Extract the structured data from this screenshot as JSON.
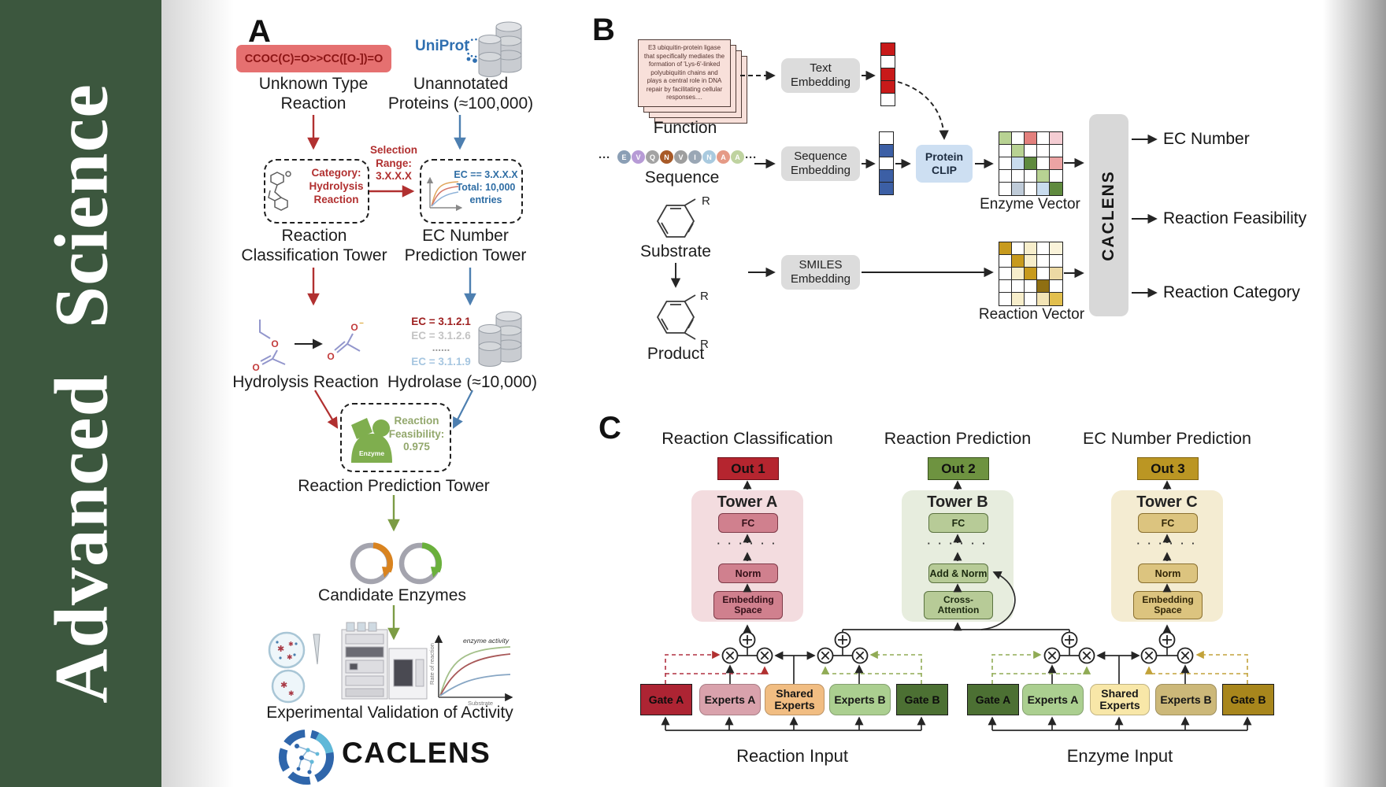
{
  "sidebar": {
    "journal_word1": "Advanced",
    "journal_word2": "Science"
  },
  "panelA": {
    "label": "A",
    "smiles": "CCOC(C)=O>>CC([O-])=O",
    "unknown_reaction": "Unknown Type\nReaction",
    "uniprot_logo": "UniProt",
    "unannotated": "Unannotated\nProteins (≈100,000)",
    "category_box": "Category:\nHydrolysis\nReaction",
    "selection_range": "Selection\nRange:\n3.X.X.X",
    "ec_box": "EC == 3.X.X.X\nTotal: 10,000\nentries",
    "classification_tower": "Reaction\nClassification Tower",
    "ec_tower": "EC Number\nPrediction Tower",
    "hydrolysis_reaction": "Hydrolysis Reaction",
    "ec_list": [
      "EC = 3.1.2.1",
      "EC = 3.1.2.6",
      "......",
      "EC = 3.1.1.9"
    ],
    "hydrolase": "Hydrolase (≈10,000)",
    "enzyme_icon_label": "Enzyme",
    "feasibility": "Reaction\nFeasibility:\n0.975",
    "prediction_tower": "Reaction Prediction Tower",
    "candidate_enzymes": "Candidate Enzymes",
    "validation": "Experimental Validation of Activity",
    "logo_text": "CACLENS",
    "plot": {
      "ylabel": "Rate of reaction",
      "xlabel": "Substrate",
      "annotation": "enzyme activity"
    }
  },
  "panelB": {
    "label": "B",
    "function_card": "E3 ubiquitin-protein ligase that specifically mediates the formation of 'Lys-6'-linked polyubiquitin chains and plays a central role in DNA repair by facilitating cellular responses....",
    "function_label": "Function",
    "ellipsis": "···",
    "sequence": [
      {
        "letter": "E",
        "color": "#8b9fb5"
      },
      {
        "letter": "V",
        "color": "#b79bd6"
      },
      {
        "letter": "Q",
        "color": "#a3a3a3"
      },
      {
        "letter": "N",
        "color": "#a85a28"
      },
      {
        "letter": "V",
        "color": "#9e9e9e"
      },
      {
        "letter": "I",
        "color": "#9aa7b5"
      },
      {
        "letter": "N",
        "color": "#a9cadf"
      },
      {
        "letter": "A",
        "color": "#e59a86"
      },
      {
        "letter": "A",
        "color": "#bfd3a0"
      }
    ],
    "sequence_label": "Sequence",
    "substrate_label": "Substrate",
    "product_label": "Product",
    "r_group": "R",
    "text_embedding": "Text\nEmbedding",
    "sequence_embedding": "Sequence\nEmbedding",
    "smiles_embedding": "SMILES\nEmbedding",
    "protein_clip": "Protein\nCLIP",
    "enzyme_vector_label": "Enzyme Vector",
    "reaction_vector_label": "Reaction Vector",
    "caclens_label": "CACLENS",
    "outputs": [
      "EC Number",
      "Reaction Feasibility",
      "Reaction Category"
    ],
    "text_vector": [
      "#c81a1a",
      "#ffffff",
      "#c81a1a",
      "#c81a1a",
      "#ffffff"
    ],
    "sequence_vector": [
      "#ffffff",
      "#3c5fa5",
      "#ffffff",
      "#3c5fa5",
      "#3c5fa5"
    ],
    "enzyme_grid": [
      "#b8d293",
      "#ffffff",
      "#e3807d",
      "#ffffff",
      "#f4cdd3",
      "#ffffff",
      "#b8d293",
      "#ffffff",
      "#ffffff",
      "#ffffff",
      "#ffffff",
      "#c9dcee",
      "#5f8a3e",
      "#ffffff",
      "#eba3a3",
      "#ffffff",
      "#ffffff",
      "#ffffff",
      "#b8d293",
      "#ffffff",
      "#ffffff",
      "#bfcbd8",
      "#ffffff",
      "#c9dcee",
      "#5f8a3e"
    ],
    "reaction_grid": [
      "#c79a1d",
      "#ffffff",
      "#f7eecb",
      "#ffffff",
      "#faf3da",
      "#ffffff",
      "#c79a1d",
      "#f7eecb",
      "#ffffff",
      "#ffffff",
      "#ffffff",
      "#f7eecb",
      "#c79a1d",
      "#ffffff",
      "#ecd9a4",
      "#ffffff",
      "#ffffff",
      "#ffffff",
      "#8f6f12",
      "#ffffff",
      "#ffffff",
      "#f7eecb",
      "#ffffff",
      "#f2e4b6",
      "#e2bf4e"
    ]
  },
  "panelC": {
    "label": "C",
    "columns": [
      {
        "title": "Reaction Classification",
        "out": "Out 1",
        "tower": "Tower A",
        "fc": "FC",
        "dots": "· · · · · ·",
        "mid": "Norm",
        "bottom": "Embedding\nSpace"
      },
      {
        "title": "Reaction Prediction",
        "out": "Out 2",
        "tower": "Tower B",
        "fc": "FC",
        "dots": "· · · · · ·",
        "mid": "Add & Norm",
        "bottom": "Cross-\nAttention"
      },
      {
        "title": "EC Number Prediction",
        "out": "Out 3",
        "tower": "Tower C",
        "fc": "FC",
        "dots": "· · · · · ·",
        "mid": "Norm",
        "bottom": "Embedding\nSpace"
      }
    ],
    "reaction_group": {
      "gate_a": "Gate A",
      "experts_a": "Experts A",
      "shared": "Shared\nExperts",
      "experts_b": "Experts B",
      "gate_b": "Gate B",
      "label": "Reaction Input"
    },
    "enzyme_group": {
      "gate_a": "Gate A",
      "experts_a": "Experts A",
      "shared": "Shared\nExperts",
      "experts_b": "Experts B",
      "gate_b": "Gate B",
      "label": "Enzyme Input"
    }
  }
}
